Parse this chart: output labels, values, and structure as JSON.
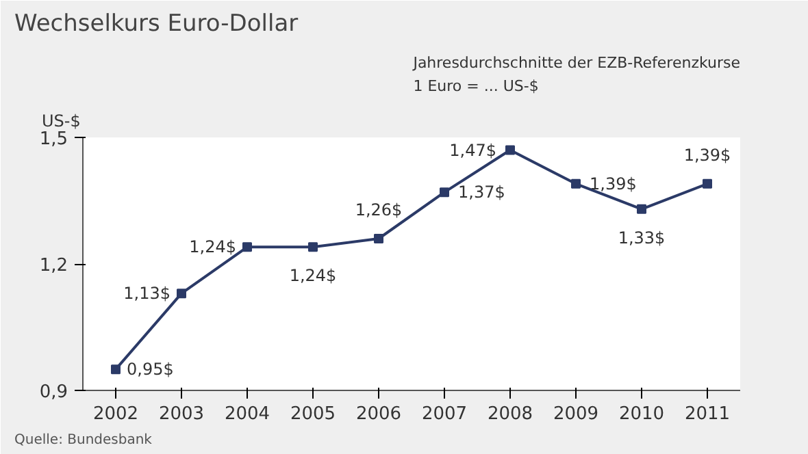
{
  "chart_data": {
    "type": "line",
    "title": "Wechselkurs Euro-Dollar",
    "subtitle": "Jahresdurchschnitte der EZB-Referenzkurse\n1 Euro = ... US-$",
    "ylabel": "US-$",
    "categories": [
      "2002",
      "2003",
      "2004",
      "2005",
      "2006",
      "2007",
      "2008",
      "2009",
      "2010",
      "2011"
    ],
    "series": [
      {
        "color": "#2b3a67",
        "values": [
          0.95,
          1.13,
          1.24,
          1.24,
          1.26,
          1.37,
          1.47,
          1.39,
          1.33,
          1.39
        ],
        "value_labels": [
          "0,95$",
          "1,13$",
          "1,24$",
          "1,24$",
          "1,26$",
          "1,37$",
          "1,47$",
          "1,39$",
          "1,33$",
          "1,39$"
        ]
      }
    ],
    "ylim": [
      0.9,
      1.5
    ],
    "yticks": [
      {
        "value": 0.9,
        "label": "0,9"
      },
      {
        "value": 1.2,
        "label": "1,2"
      },
      {
        "value": 1.5,
        "label": "1,5"
      }
    ],
    "marker": "square",
    "line_style": "solid",
    "grid": false,
    "annotations": [
      "Quelle: Bundesbank"
    ]
  }
}
